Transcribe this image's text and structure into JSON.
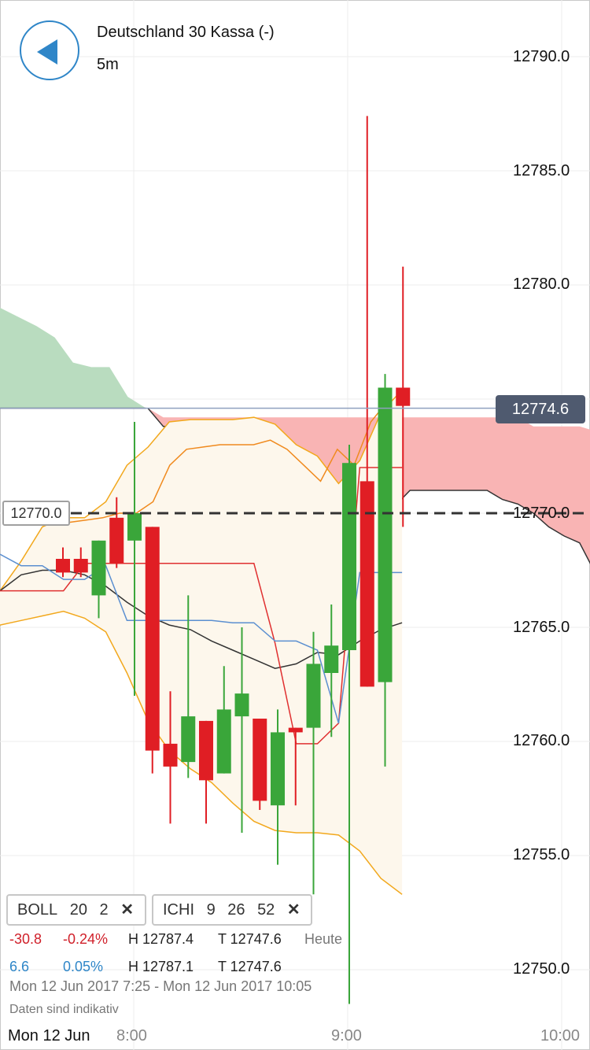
{
  "header": {
    "title": "Deutschland 30 Kassa (-)",
    "interval": "5m"
  },
  "current_price_label": "12774.6",
  "alert_level_label": "12770.0",
  "indicators": [
    {
      "name": "BOLL",
      "p1": "20",
      "p2": "2",
      "close": "✕"
    },
    {
      "name": "ICHI",
      "p1": "9",
      "p2": "26",
      "p3": "52",
      "close": "✕"
    }
  ],
  "stats_row1": {
    "change": "-30.8",
    "percent": "-0.24%",
    "high": "H 12787.4",
    "low": "T 12747.6",
    "period": "Heute"
  },
  "stats_row2": {
    "change": "6.6",
    "percent": "0.05%",
    "high": "H 12787.1",
    "low": "T 12747.6"
  },
  "range_text": "Mon 12 Jun 2017 7:25 - Mon 12 Jun 2017 10:05",
  "disclaimer": "Daten sind indikativ",
  "x_date_label": "Mon 12 Jun",
  "colors": {
    "up": "#3aa63a",
    "down": "#e01e24",
    "kumo_bull": "#b9dcbf",
    "kumo_bear": "#f9b4b4",
    "boll_band": "#f2a81d",
    "boll_fill": "#fdf7ec",
    "tenkan": "#e03030",
    "kijun": "#5b8fd0",
    "chikou": "#f08a1e",
    "span": "#333333",
    "price_line": "#8fa0bf"
  },
  "chart_data": {
    "type": "candlestick",
    "title": "Deutschland 30 Kassa (-)",
    "interval": "5m",
    "ylim": [
      12748.4,
      12794.6
    ],
    "y_ticks": [
      12790.0,
      12785.0,
      12780.0,
      12775.0,
      12770.0,
      12765.0,
      12760.0,
      12755.0,
      12750.0
    ],
    "y_tick_labels": [
      "12790.0",
      "12785.0",
      "12780.0",
      "12775.0",
      "12770.0",
      "12765.0",
      "12760.0",
      "12755.0",
      "12750.0"
    ],
    "x_ticks": [
      {
        "label": "8:00",
        "time": "8:00"
      },
      {
        "label": "9:00",
        "time": "9:00"
      },
      {
        "label": "10:00",
        "time": "10:00"
      }
    ],
    "last_price": 12774.6,
    "horizontal_line": 12770.0,
    "candles": [
      {
        "time": "7:25",
        "open": 12768.0,
        "high": 12768.5,
        "low": 12767.2,
        "close": 12767.4
      },
      {
        "time": "7:30",
        "open": 12768.0,
        "high": 12768.5,
        "low": 12767.2,
        "close": 12767.4
      },
      {
        "time": "7:35",
        "open": 12766.4,
        "high": 12768.8,
        "low": 12765.4,
        "close": 12768.8
      },
      {
        "time": "7:40",
        "open": 12769.8,
        "high": 12770.7,
        "low": 12767.6,
        "close": 12767.8
      },
      {
        "time": "7:45",
        "open": 12768.8,
        "high": 12774.0,
        "low": 12762.0,
        "close": 12770.0
      },
      {
        "time": "7:50",
        "open": 12769.4,
        "high": 12769.4,
        "low": 12758.6,
        "close": 12759.6
      },
      {
        "time": "7:55",
        "open": 12759.9,
        "high": 12762.2,
        "low": 12756.4,
        "close": 12758.9
      },
      {
        "time": "8:00",
        "open": 12759.1,
        "high": 12766.4,
        "low": 12758.4,
        "close": 12761.1
      },
      {
        "time": "8:05",
        "open": 12760.9,
        "high": 12760.9,
        "low": 12756.4,
        "close": 12758.3
      },
      {
        "time": "8:10",
        "open": 12758.6,
        "high": 12763.3,
        "low": 12758.6,
        "close": 12761.4
      },
      {
        "time": "8:15",
        "open": 12761.1,
        "high": 12765.0,
        "low": 12756.0,
        "close": 12762.1
      },
      {
        "time": "8:20",
        "open": 12761.0,
        "high": 12761.0,
        "low": 12757.0,
        "close": 12757.4
      },
      {
        "time": "8:25",
        "open": 12757.2,
        "high": 12761.4,
        "low": 12754.6,
        "close": 12760.4
      },
      {
        "time": "8:30",
        "open": 12760.6,
        "high": 12760.6,
        "low": 12757.2,
        "close": 12760.4
      },
      {
        "time": "8:35",
        "open": 12760.6,
        "high": 12764.8,
        "low": 12753.3,
        "close": 12763.4
      },
      {
        "time": "8:40",
        "open": 12763.0,
        "high": 12766.0,
        "low": 12760.2,
        "close": 12764.2
      },
      {
        "time": "8:45",
        "open": 12764.0,
        "high": 12773.0,
        "low": 12748.5,
        "close": 12772.2
      },
      {
        "time": "8:50",
        "open": 12771.4,
        "high": 12787.4,
        "low": 12762.4,
        "close": 12762.4
      },
      {
        "time": "8:55",
        "open": 12762.6,
        "high": 12776.1,
        "low": 12758.9,
        "close": 12775.5
      },
      {
        "time": "9:00",
        "open": 12775.5,
        "high": 12780.8,
        "low": 12769.4,
        "close": 12774.7
      }
    ],
    "bollinger": {
      "period": 20,
      "stddev": 2,
      "upper": [
        12766.6,
        12767.9,
        12769.4,
        12769.8,
        12769.8,
        12770.5,
        12772.1,
        12772.9,
        12774.0,
        12774.1,
        12774.1,
        12774.1,
        12774.2,
        12773.9,
        12773.0,
        12772.5,
        12771.3,
        12772.3,
        12774.4,
        12775.4
      ],
      "middle": [
        12766.6,
        12767.3,
        12767.5,
        12767.5,
        12767.3,
        12766.8,
        12766.1,
        12765.5,
        12765.1,
        12764.9,
        12764.4,
        12764.0,
        12763.6,
        12763.2,
        12763.4,
        12763.9,
        12763.8,
        12764.4,
        12764.9,
        12765.2
      ],
      "lower": [
        12765.1,
        12765.3,
        12765.5,
        12765.7,
        12765.4,
        12764.8,
        12763.0,
        12760.9,
        12759.6,
        12758.8,
        12758.2,
        12757.3,
        12756.5,
        12756.1,
        12756.0,
        12756.0,
        12755.9,
        12755.2,
        12754.0,
        12753.3
      ]
    },
    "ichimoku": {
      "tenkan": [
        12766.6,
        12766.6,
        12766.6,
        12766.6,
        12767.8,
        12767.8,
        12767.8,
        12767.8,
        12767.8,
        12767.8,
        12767.8,
        12767.8,
        12767.8,
        12764.3,
        12759.9,
        12759.9,
        12760.8,
        12772.0,
        12772.0,
        12772.0
      ],
      "kijun": [
        12768.2,
        12767.7,
        12767.7,
        12767.1,
        12767.1,
        12767.7,
        12765.3,
        12765.3,
        12765.3,
        12765.3,
        12765.3,
        12765.2,
        12765.2,
        12764.4,
        12764.4,
        12764.0,
        12760.8,
        12767.4,
        12767.4,
        12767.4
      ],
      "chikou": [
        12769.6,
        12769.7,
        12769.8,
        12770.0,
        12770.0,
        12770.5,
        12772.1,
        12772.8,
        12772.9,
        12773.0,
        12773.0,
        12773.0,
        12773.2,
        12772.8,
        12772.1,
        12771.4,
        12772.8,
        12772.1,
        12774.0,
        12774.9
      ],
      "kumo_segments": [
        {
          "type": "bullish",
          "span_a": [
            12779.0,
            12778.6,
            12778.2,
            12777.7,
            12776.6,
            12776.4,
            12776.4,
            12775.1,
            12774.6
          ],
          "span_b": [
            12774.6,
            12774.6,
            12774.6,
            12774.6,
            12774.6,
            12774.6,
            12774.6,
            12774.6,
            12774.6
          ]
        },
        {
          "type": "bearish",
          "span_a": [
            12774.6,
            12774.2,
            12774.2,
            12774.2,
            12774.2,
            12774.2,
            12774.2,
            12774.2,
            12774.2,
            12774.2,
            12774.2,
            12774.2,
            12774.2,
            12774.2,
            12774.2,
            12774.2,
            12774.2,
            12774.2,
            12774.2,
            12774.2,
            12774.2,
            12774.2,
            12774.2,
            12774.2,
            12774.2,
            12773.8,
            12773.8,
            12773.8,
            12773.8,
            12773.6
          ],
          "span_b": [
            12774.6,
            12773.8,
            12773.8,
            12773.3,
            12772.8,
            12771.8,
            12770.8,
            12770.7,
            12770.4,
            12770.3,
            12770.3,
            12770.3,
            12770.3,
            12770.3,
            12770.3,
            12770.3,
            12770.3,
            12771.0,
            12771.0,
            12771.0,
            12771.0,
            12771.0,
            12771.0,
            12770.6,
            12770.4,
            12770.0,
            12769.4,
            12769.0,
            12768.7,
            12767.4
          ]
        }
      ]
    }
  }
}
